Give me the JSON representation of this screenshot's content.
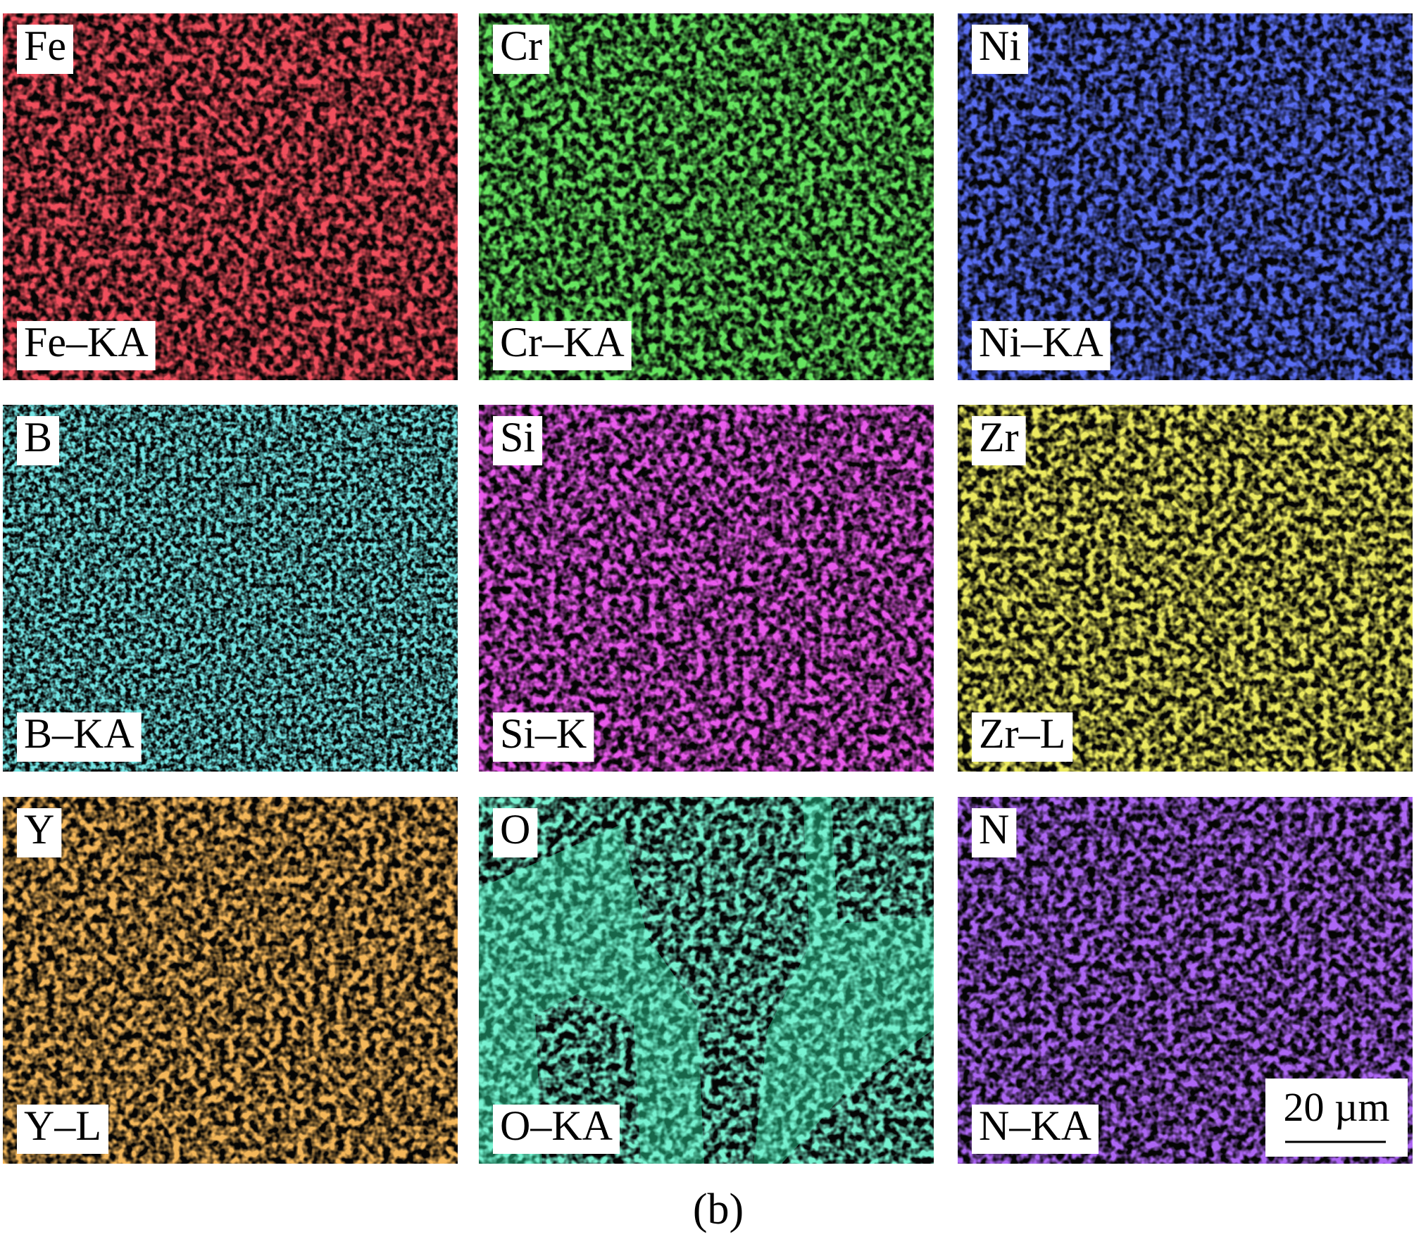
{
  "panels": [
    {
      "element": "Fe",
      "line": "Fe–KA",
      "color": "#e0141c"
    },
    {
      "element": "Cr",
      "line": "Cr–KA",
      "color": "#22c81e"
    },
    {
      "element": "Ni",
      "line": "Ni–KA",
      "color": "#1a28e6"
    },
    {
      "element": "B",
      "line": "B–KA",
      "color": "#2cc8c8"
    },
    {
      "element": "Si",
      "line": "Si–K",
      "color": "#d01ad6"
    },
    {
      "element": "Zr",
      "line": "Zr–L",
      "color": "#d6d21e"
    },
    {
      "element": "Y",
      "line": "Y–L",
      "color": "#e6781a"
    },
    {
      "element": "O",
      "line": "O–KA",
      "color": "#2ee0a0"
    },
    {
      "element": "N",
      "line": "N–KA",
      "color": "#6a22e6"
    }
  ],
  "scale_bar": "20 µm",
  "caption": "(b)"
}
